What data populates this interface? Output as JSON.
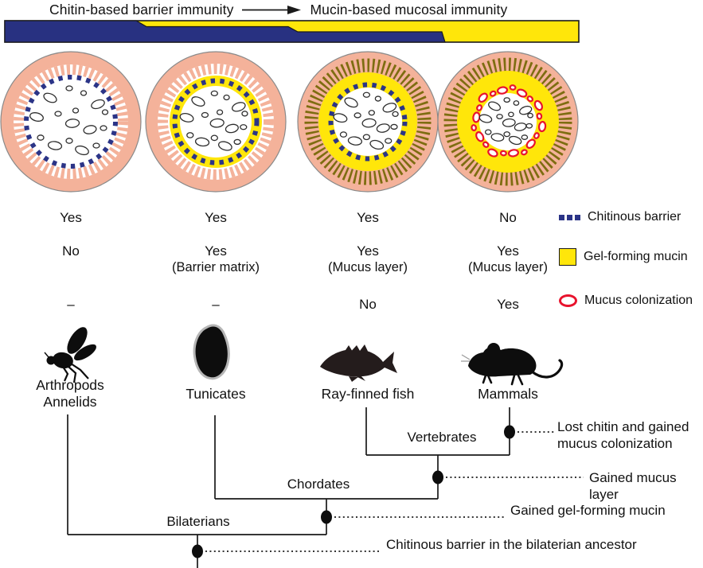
{
  "header": {
    "left_label": "Chitin-based barrier immunity",
    "right_label": "Mucin-based mucosal immunity",
    "arrow": "right-arrow"
  },
  "colors": {
    "epithelium": "#f4b29a",
    "mucin": "#ffe60a",
    "chitin": "#2b3487",
    "colonization": "#e8132d",
    "bristle": "#7e6d10",
    "bar_blue": "#283181",
    "outline": "#8a8a8a"
  },
  "organisms": [
    {
      "label": "Arthropods\nAnnelids",
      "chitinous_barrier": "Yes",
      "gel_forming_mucin": "No",
      "mucus_colonization": "–",
      "bristles": "chitinous-white"
    },
    {
      "label": "Tunicates",
      "chitinous_barrier": "Yes",
      "gel_forming_mucin": "Yes (Barrier matrix)",
      "mucus_colonization": "–",
      "bristles": "chitinous-white"
    },
    {
      "label": "Ray-finned fish",
      "chitinous_barrier": "Yes",
      "gel_forming_mucin": "Yes (Mucus layer)",
      "mucus_colonization": "No",
      "bristles": "olive"
    },
    {
      "label": "Mammals",
      "chitinous_barrier": "No",
      "gel_forming_mucin": "Yes (Mucus layer)",
      "mucus_colonization": "Yes",
      "bristles": "olive"
    }
  ],
  "matrix": {
    "rows": [
      {
        "feature": "Chitinous barrier",
        "values": [
          {
            "main": "Yes"
          },
          {
            "main": "Yes"
          },
          {
            "main": "Yes"
          },
          {
            "main": "No"
          }
        ]
      },
      {
        "feature": "Gel-forming mucin",
        "values": [
          {
            "main": "No"
          },
          {
            "main": "Yes",
            "sub": "(Barrier matrix)"
          },
          {
            "main": "Yes",
            "sub": "(Mucus layer)"
          },
          {
            "main": "Yes",
            "sub": "(Mucus layer)"
          }
        ]
      },
      {
        "feature": "Mucus colonization",
        "values": [
          {
            "main": "–"
          },
          {
            "main": "–"
          },
          {
            "main": "No"
          },
          {
            "main": "Yes"
          }
        ]
      }
    ]
  },
  "legend": [
    {
      "icon": "chitinous-barrier-icon",
      "label": "Chitinous barrier"
    },
    {
      "icon": "gel-forming-mucin-icon",
      "label": "Gel-forming mucin"
    },
    {
      "icon": "mucus-colonization-icon",
      "label": "Mucus colonization"
    }
  ],
  "tree": {
    "clades": [
      {
        "name": "Vertebrates"
      },
      {
        "name": "Chordates"
      },
      {
        "name": "Bilaterians"
      }
    ],
    "annotations": [
      {
        "text": "Lost chitin and gained mucus colonization"
      },
      {
        "text": "Gained mucus layer"
      },
      {
        "text": "Gained gel-forming mucin"
      },
      {
        "text": "Chitinous barrier in the bilaterian ancestor"
      }
    ]
  }
}
